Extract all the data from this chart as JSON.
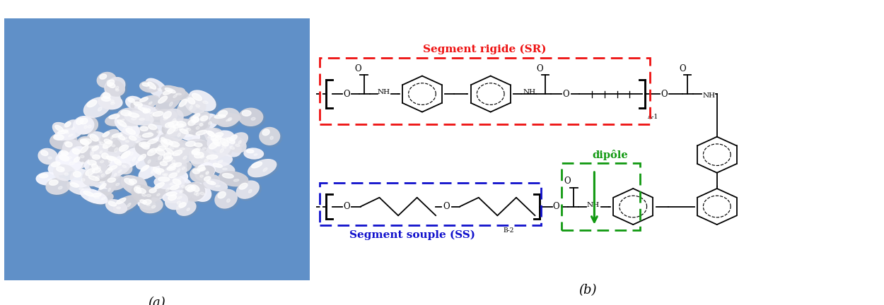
{
  "fig_width": 12.5,
  "fig_height": 4.32,
  "dpi": 100,
  "label_a": "(a)",
  "label_b": "(b)",
  "label_fontsize": 13,
  "sr_label": "Segment rigide (SR)",
  "ss_label": "Segment souple (SS)",
  "dipole_label": "dipôle",
  "sr_color": "#ee1111",
  "ss_color": "#1111cc",
  "dipole_color": "#119911",
  "bg_color": "#ffffff",
  "photo_bg": "#6090c8"
}
